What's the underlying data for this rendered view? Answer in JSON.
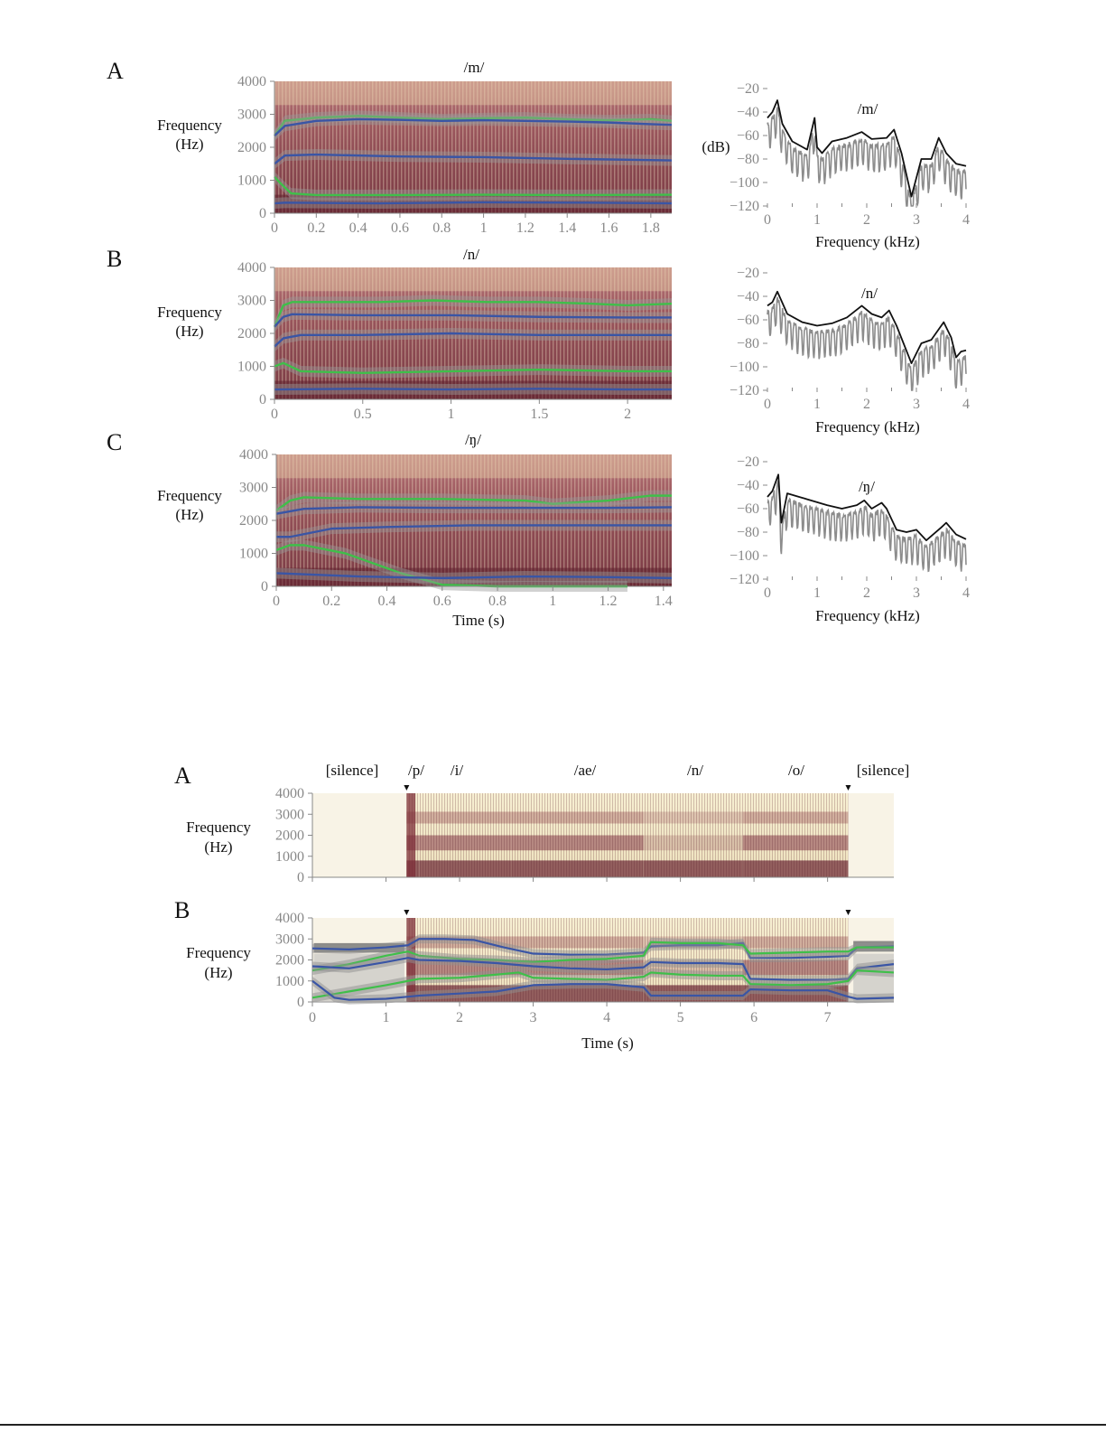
{
  "colors": {
    "formant_green": "#3fbf4a",
    "formant_blue": "#3a55a5",
    "spec_dark": "#7a2430",
    "spec_light": "#f4e9c6",
    "lpc_black": "#111111",
    "fft_gray": "#8c8c8c"
  },
  "figure1": {
    "ylabel_line1": "Frequency",
    "ylabel_line2": "(Hz)",
    "xlabel": "Time (s)",
    "spec_xlabel": "Frequency (kHz)",
    "spec_ylabel": "(dB)",
    "rows": [
      {
        "panel_label": "A",
        "phoneme": "/m/",
        "xmax": 1.9,
        "xticks": [
          0,
          0.2,
          0.4,
          0.6,
          0.8,
          1,
          1.2,
          1.4,
          1.6,
          1.8
        ],
        "show_xlabel": false,
        "show_dB": true
      },
      {
        "panel_label": "B",
        "phoneme": "/n/",
        "xmax": 2.25,
        "xticks": [
          0,
          0.5,
          1,
          1.5,
          2
        ],
        "show_xlabel": false,
        "show_dB": false
      },
      {
        "panel_label": "C",
        "phoneme": "/ŋ/",
        "xmax": 1.43,
        "xticks": [
          0,
          0.2,
          0.4,
          0.6,
          0.8,
          1,
          1.2,
          1.4
        ],
        "show_xlabel": true,
        "show_dB": false
      }
    ]
  },
  "figure2": {
    "ylabel_line1": "Frequency",
    "ylabel_line2": "(Hz)",
    "xlabel": "Time (s)",
    "panel_a": "A",
    "panel_b": "B",
    "segments": [
      "[silence]",
      "/p/",
      "/i/",
      "/ae/",
      "/n/",
      "/o/",
      "[silence]"
    ],
    "xticks": [
      0,
      1,
      2,
      3,
      4,
      5,
      6,
      7
    ]
  },
  "chart_data": [
    {
      "type": "heatmap",
      "title": "/m/",
      "xlabel": "",
      "ylabel": "Frequency (Hz)",
      "xlim": [
        0,
        1.9
      ],
      "ylim": [
        0,
        4000
      ],
      "series": [
        {
          "color": "green",
          "x": [
            0,
            0.05,
            0.2,
            0.4,
            0.6,
            0.8,
            1.0,
            1.2,
            1.4,
            1.6,
            1.8,
            1.9
          ],
          "values": [
            2350,
            2800,
            2900,
            2950,
            2900,
            2850,
            2880,
            2900,
            2850,
            2820,
            2850,
            2800
          ]
        },
        {
          "color": "blue",
          "x": [
            0,
            0.05,
            0.2,
            0.4,
            0.6,
            0.8,
            1.0,
            1.2,
            1.4,
            1.6,
            1.8,
            1.9
          ],
          "values": [
            2350,
            2650,
            2800,
            2850,
            2830,
            2800,
            2820,
            2800,
            2780,
            2750,
            2700,
            2680
          ]
        },
        {
          "color": "blue",
          "x": [
            0,
            0.05,
            0.2,
            0.6,
            1.0,
            1.4,
            1.9
          ],
          "values": [
            1500,
            1750,
            1780,
            1720,
            1700,
            1650,
            1600
          ]
        },
        {
          "color": "green",
          "x": [
            0,
            0.03,
            0.08,
            0.2,
            0.6,
            1.0,
            1.4,
            1.9
          ],
          "values": [
            1100,
            900,
            600,
            550,
            550,
            560,
            550,
            560
          ]
        },
        {
          "color": "blue",
          "x": [
            0,
            0.05,
            0.5,
            1.0,
            1.5,
            1.9
          ],
          "values": [
            300,
            320,
            300,
            330,
            320,
            300
          ]
        }
      ]
    },
    {
      "type": "line",
      "title": "/m/",
      "xlabel": "Frequency (kHz)",
      "ylabel": "(dB)",
      "xlim": [
        0,
        4
      ],
      "ylim": [
        -120,
        -20
      ],
      "xticks": [
        0,
        1,
        2,
        3,
        4
      ],
      "yticks": [
        -20,
        -40,
        -60,
        -80,
        -100,
        -120
      ],
      "series": [
        {
          "color": "black",
          "x": [
            0,
            0.1,
            0.2,
            0.3,
            0.5,
            0.8,
            0.95,
            1.0,
            1.1,
            1.3,
            1.6,
            1.9,
            2.1,
            2.4,
            2.55,
            2.7,
            2.9,
            3.1,
            3.3,
            3.45,
            3.6,
            3.8,
            4.0
          ],
          "values": [
            -45,
            -40,
            -30,
            -50,
            -65,
            -72,
            -45,
            -70,
            -75,
            -65,
            -62,
            -57,
            -63,
            -62,
            -55,
            -75,
            -112,
            -80,
            -80,
            -62,
            -75,
            -84,
            -86
          ]
        }
      ]
    },
    {
      "type": "heatmap",
      "title": "/n/",
      "xlabel": "",
      "ylabel": "Frequency (Hz)",
      "xlim": [
        0,
        2.25
      ],
      "ylim": [
        0,
        4000
      ],
      "series": [
        {
          "color": "green",
          "x": [
            0,
            0.05,
            0.1,
            0.3,
            0.6,
            0.9,
            1.2,
            1.5,
            1.8,
            2.0,
            2.25
          ],
          "values": [
            2200,
            2850,
            2950,
            2950,
            2950,
            3000,
            2950,
            2950,
            2900,
            2850,
            2900
          ]
        },
        {
          "color": "blue",
          "x": [
            0,
            0.05,
            0.1,
            0.5,
            1.0,
            1.5,
            2.0,
            2.25
          ],
          "values": [
            2200,
            2500,
            2580,
            2550,
            2550,
            2500,
            2480,
            2480
          ]
        },
        {
          "color": "blue",
          "x": [
            0,
            0.05,
            0.15,
            0.5,
            1.0,
            1.5,
            2.0,
            2.25
          ],
          "values": [
            1600,
            1850,
            1950,
            1950,
            2000,
            1950,
            1950,
            1950
          ]
        },
        {
          "color": "green",
          "x": [
            0,
            0.05,
            0.15,
            0.5,
            1.0,
            1.5,
            2.0,
            2.25
          ],
          "values": [
            1000,
            1100,
            850,
            800,
            850,
            900,
            850,
            850
          ]
        },
        {
          "color": "blue",
          "x": [
            0,
            0.5,
            1.0,
            1.5,
            2.0,
            2.25
          ],
          "values": [
            300,
            320,
            300,
            320,
            300,
            300
          ]
        }
      ]
    },
    {
      "type": "line",
      "title": "/n/",
      "xlabel": "Frequency (kHz)",
      "ylabel": "",
      "xlim": [
        0,
        4
      ],
      "ylim": [
        -120,
        -20
      ],
      "xticks": [
        0,
        1,
        2,
        3,
        4
      ],
      "yticks": [
        -20,
        -40,
        -60,
        -80,
        -100,
        -120
      ],
      "series": [
        {
          "color": "black",
          "x": [
            0,
            0.1,
            0.2,
            0.4,
            0.7,
            1.0,
            1.3,
            1.6,
            1.9,
            2.1,
            2.3,
            2.45,
            2.6,
            2.9,
            3.1,
            3.3,
            3.55,
            3.7,
            3.8,
            3.9,
            4.0
          ],
          "values": [
            -48,
            -45,
            -36,
            -55,
            -62,
            -65,
            -63,
            -58,
            -48,
            -55,
            -58,
            -52,
            -65,
            -97,
            -80,
            -77,
            -62,
            -75,
            -92,
            -87,
            -86
          ]
        }
      ]
    },
    {
      "type": "heatmap",
      "title": "/ŋ/",
      "xlabel": "Time (s)",
      "ylabel": "Frequency (Hz)",
      "xlim": [
        0,
        1.43
      ],
      "ylim": [
        0,
        4000
      ],
      "series": [
        {
          "color": "green",
          "x": [
            0,
            0.05,
            0.1,
            0.3,
            0.6,
            0.9,
            1.0,
            1.2,
            1.35,
            1.43
          ],
          "values": [
            2300,
            2600,
            2700,
            2650,
            2650,
            2600,
            2500,
            2600,
            2750,
            2750
          ]
        },
        {
          "color": "blue",
          "x": [
            0,
            0.1,
            0.3,
            0.6,
            0.9,
            1.2,
            1.43
          ],
          "values": [
            2200,
            2350,
            2400,
            2380,
            2380,
            2380,
            2400
          ]
        },
        {
          "color": "blue",
          "x": [
            0,
            0.05,
            0.2,
            0.4,
            0.7,
            1.0,
            1.2,
            1.43
          ],
          "values": [
            1500,
            1500,
            1750,
            1800,
            1850,
            1850,
            1850,
            1850
          ]
        },
        {
          "color": "green",
          "x": [
            0,
            0.05,
            0.1,
            0.25,
            0.45,
            0.6,
            0.8,
            1.0,
            1.27
          ],
          "values": [
            1100,
            1250,
            1250,
            1000,
            400,
            50,
            0,
            0,
            0
          ]
        },
        {
          "color": "blue",
          "x": [
            0,
            0.3,
            0.6,
            0.9,
            1.2,
            1.43
          ],
          "values": [
            400,
            300,
            250,
            300,
            280,
            250
          ]
        }
      ]
    },
    {
      "type": "line",
      "title": "/ŋ/",
      "xlabel": "Frequency (kHz)",
      "ylabel": "",
      "xlim": [
        0,
        4
      ],
      "ylim": [
        -120,
        -20
      ],
      "xticks": [
        0,
        1,
        2,
        3,
        4
      ],
      "yticks": [
        -20,
        -40,
        -60,
        -80,
        -100,
        -120
      ],
      "series": [
        {
          "color": "black",
          "x": [
            0,
            0.1,
            0.22,
            0.28,
            0.4,
            0.8,
            1.2,
            1.5,
            1.8,
            1.95,
            2.1,
            2.3,
            2.4,
            2.6,
            2.8,
            3.0,
            3.2,
            3.5,
            3.6,
            3.8,
            4.0
          ],
          "values": [
            -50,
            -45,
            -31,
            -72,
            -47,
            -52,
            -57,
            -60,
            -57,
            -53,
            -60,
            -55,
            -60,
            -78,
            -80,
            -78,
            -87,
            -76,
            -72,
            -82,
            -86
          ]
        }
      ]
    },
    {
      "type": "heatmap",
      "title": "",
      "xlabel": "",
      "ylabel": "Frequency (Hz)",
      "xlim": [
        0,
        7.9
      ],
      "ylim": [
        0,
        4000
      ],
      "segments": [
        {
          "label": "[silence]",
          "start": 0,
          "end": 1.28
        },
        {
          "label": "/p/",
          "start": 1.28,
          "end": 1.45
        },
        {
          "label": "/i/",
          "start": 1.45,
          "end": 2.7
        },
        {
          "label": "/ae/",
          "start": 2.7,
          "end": 4.5
        },
        {
          "label": "/n/",
          "start": 4.5,
          "end": 5.85
        },
        {
          "label": "/o/",
          "start": 5.85,
          "end": 7.28
        },
        {
          "label": "[silence]",
          "start": 7.28,
          "end": 7.9
        }
      ]
    },
    {
      "type": "heatmap",
      "title": "",
      "xlabel": "Time (s)",
      "ylabel": "Frequency (Hz)",
      "xlim": [
        0,
        7.9
      ],
      "ylim": [
        0,
        4000
      ],
      "xticks": [
        0,
        1,
        2,
        3,
        4,
        5,
        6,
        7
      ],
      "series": [
        {
          "color": "blue",
          "x": [
            0,
            0.5,
            1.0,
            1.3,
            1.45,
            1.8,
            2.2,
            2.6,
            3.0,
            3.5,
            4.0,
            4.5,
            4.6,
            5.0,
            5.5,
            5.85,
            5.95,
            6.5,
            7.0,
            7.28,
            7.4,
            7.9
          ],
          "values": [
            2550,
            2500,
            2600,
            2700,
            3000,
            3000,
            2950,
            2600,
            2300,
            2250,
            2250,
            2350,
            2650,
            2700,
            2700,
            2800,
            2100,
            2100,
            2150,
            2200,
            2600,
            2650
          ]
        },
        {
          "color": "green",
          "x": [
            0,
            0.5,
            1.0,
            1.3,
            1.45,
            2.0,
            2.5,
            3.0,
            3.5,
            4.0,
            4.5,
            4.6,
            5.0,
            5.5,
            5.85,
            5.95,
            6.5,
            7.0,
            7.28,
            7.4,
            7.9
          ],
          "values": [
            1500,
            1800,
            2200,
            2400,
            2200,
            2050,
            2000,
            1900,
            2000,
            2050,
            2200,
            2850,
            2800,
            2800,
            2700,
            2300,
            2350,
            2400,
            2400,
            2600,
            2600
          ]
        },
        {
          "color": "blue",
          "x": [
            0,
            0.5,
            1.0,
            1.3,
            1.45,
            2.0,
            2.5,
            3.0,
            3.5,
            4.0,
            4.5,
            4.6,
            5.0,
            5.5,
            5.85,
            5.95,
            6.5,
            7.0,
            7.28,
            7.4,
            7.9
          ],
          "values": [
            1700,
            1600,
            1900,
            2100,
            2000,
            1950,
            1850,
            1700,
            1600,
            1550,
            1650,
            1900,
            1850,
            1850,
            1800,
            1100,
            1050,
            1050,
            1100,
            1600,
            1800
          ]
        },
        {
          "color": "green",
          "x": [
            0,
            0.5,
            1.0,
            1.3,
            1.45,
            2.0,
            2.5,
            2.8,
            3.0,
            3.5,
            4.0,
            4.5,
            4.6,
            5.0,
            5.5,
            5.85,
            5.95,
            6.5,
            7.0,
            7.28,
            7.4,
            7.9
          ],
          "values": [
            200,
            500,
            800,
            1000,
            1100,
            1150,
            1300,
            1400,
            1150,
            1100,
            1050,
            1200,
            1400,
            1300,
            1250,
            1250,
            850,
            800,
            850,
            1000,
            1500,
            1400
          ]
        },
        {
          "color": "blue",
          "x": [
            0,
            0.3,
            0.5,
            1.0,
            1.3,
            1.45,
            2.0,
            2.5,
            3.0,
            3.5,
            4.0,
            4.5,
            4.6,
            5.0,
            5.5,
            5.85,
            5.95,
            6.5,
            7.0,
            7.28,
            7.4,
            7.9
          ],
          "values": [
            1000,
            200,
            100,
            150,
            250,
            300,
            400,
            500,
            800,
            850,
            850,
            700,
            300,
            300,
            300,
            300,
            600,
            550,
            550,
            250,
            150,
            200
          ]
        }
      ]
    }
  ]
}
